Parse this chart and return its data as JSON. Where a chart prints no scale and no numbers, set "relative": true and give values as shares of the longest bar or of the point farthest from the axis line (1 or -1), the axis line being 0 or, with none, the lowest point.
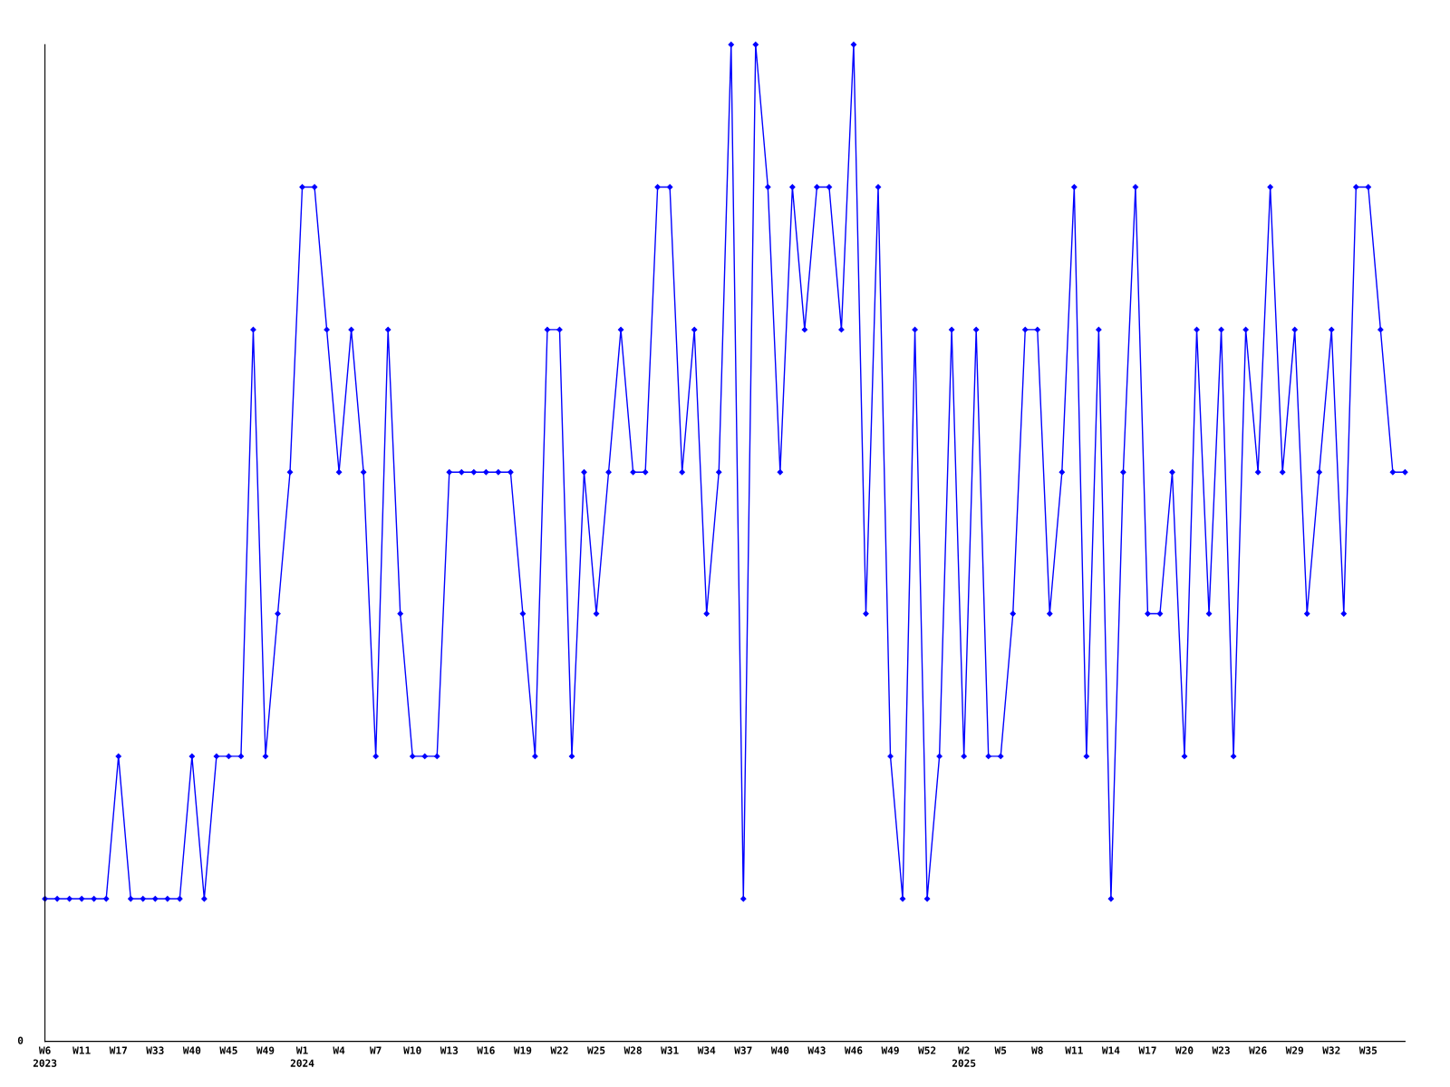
{
  "chart_data": {
    "type": "line",
    "relative": true,
    "color": "#0000ff",
    "marker": "diamond",
    "grid": false,
    "legend": false,
    "categories": [
      "W6\n2023",
      null,
      null,
      "W11",
      null,
      null,
      "W17",
      null,
      null,
      "W33",
      null,
      null,
      "W40",
      null,
      null,
      "W45",
      null,
      null,
      "W49",
      null,
      null,
      "W1\n2024",
      null,
      null,
      "W4",
      null,
      null,
      "W7",
      null,
      null,
      "W10",
      null,
      null,
      "W13",
      null,
      null,
      "W16",
      null,
      null,
      "W19",
      null,
      null,
      "W22",
      null,
      null,
      "W25",
      null,
      null,
      "W28",
      null,
      null,
      "W31",
      null,
      null,
      "W34",
      null,
      null,
      "W37",
      null,
      null,
      "W40",
      null,
      null,
      "W43",
      null,
      null,
      "W46",
      null,
      null,
      "W49",
      null,
      null,
      "W52",
      null,
      null,
      "W2\n2025",
      null,
      null,
      "W5",
      null,
      null,
      "W8",
      null,
      null,
      "W11",
      null,
      null,
      "W14",
      null,
      null,
      "W17",
      null,
      null,
      "W20",
      null,
      null,
      "W23",
      null,
      null,
      "W26",
      null,
      null,
      "W29",
      null,
      null,
      "W32",
      null,
      null,
      "W35",
      null,
      null,
      null
    ],
    "values": [
      0.143,
      0.143,
      0.143,
      0.143,
      0.143,
      0.143,
      0.286,
      0.143,
      0.143,
      0.143,
      0.143,
      0.143,
      0.286,
      0.143,
      0.286,
      0.286,
      0.286,
      0.714,
      0.286,
      0.429,
      0.571,
      0.857,
      0.857,
      0.714,
      0.571,
      0.714,
      0.571,
      0.286,
      0.714,
      0.429,
      0.286,
      0.286,
      0.286,
      0.571,
      0.571,
      0.571,
      0.571,
      0.571,
      0.571,
      0.429,
      0.286,
      0.714,
      0.714,
      0.286,
      0.571,
      0.429,
      0.571,
      0.714,
      0.571,
      0.571,
      0.857,
      0.857,
      0.571,
      0.714,
      0.429,
      0.571,
      1,
      0.143,
      1,
      0.857,
      0.571,
      0.857,
      0.714,
      0.857,
      0.857,
      0.714,
      1,
      0.429,
      0.857,
      0.286,
      0.143,
      0.714,
      0.143,
      0.286,
      0.714,
      0.286,
      0.714,
      0.286,
      0.286,
      0.429,
      0.714,
      0.714,
      0.429,
      0.571,
      0.857,
      0.286,
      0.714,
      0.143,
      0.571,
      0.857,
      0.429,
      0.429,
      0.571,
      0.286,
      0.714,
      0.429,
      0.714,
      0.286,
      0.714,
      0.571,
      0.857,
      0.571,
      0.714,
      0.429,
      0.571,
      0.714,
      0.429,
      0.857,
      0.857,
      0.714,
      0.571,
      0.571
    ],
    "annotations": [
      "0"
    ]
  }
}
